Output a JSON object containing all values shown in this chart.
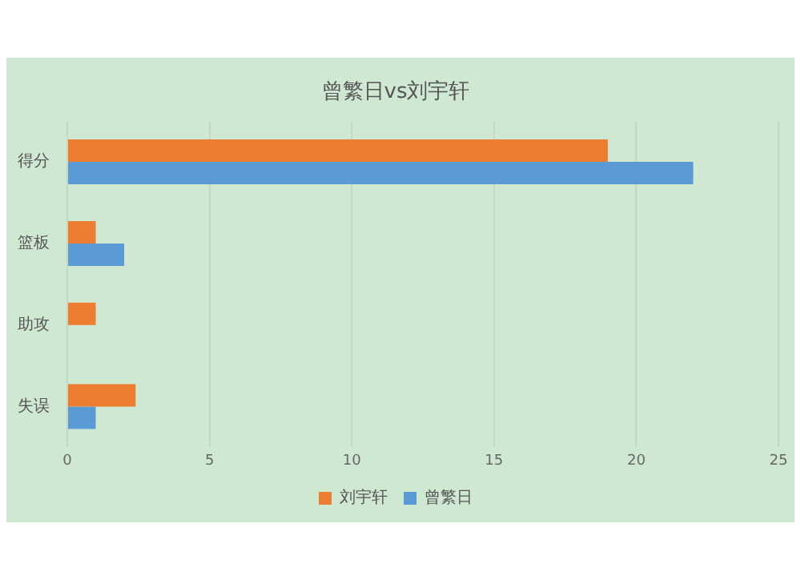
{
  "chart_data": {
    "type": "bar",
    "orientation": "horizontal",
    "title": "曾繁日vs刘宇轩",
    "categories": [
      "得分",
      "篮板",
      "助攻",
      "失误"
    ],
    "series": [
      {
        "name": "刘宇轩",
        "color": "#ed7d31",
        "values": [
          19,
          1,
          1,
          2.4
        ]
      },
      {
        "name": "曾繁日",
        "color": "#5b9bd5",
        "values": [
          22,
          2,
          null,
          1
        ]
      }
    ],
    "xlim": [
      0,
      25
    ],
    "xticks": [
      0,
      5,
      10,
      15,
      20,
      25
    ],
    "grid": "x",
    "legend": "bottom"
  }
}
